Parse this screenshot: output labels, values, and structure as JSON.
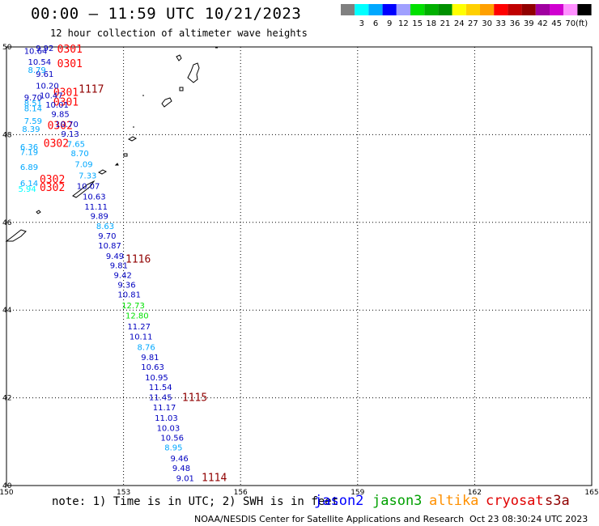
{
  "header": {
    "title": "00:00 – 11:59 UTC 10/21/2023",
    "subtitle": "12 hour collection of altimeter wave heights"
  },
  "legend": {
    "ticks": [
      "3",
      "6",
      "9",
      "12",
      "15",
      "18",
      "21",
      "24",
      "27",
      "30",
      "33",
      "36",
      "39",
      "42",
      "45",
      "70"
    ],
    "unit": "(ft)",
    "colors": [
      "#808080",
      "#00ffff",
      "#00a8ff",
      "#0000ff",
      "#a0a0ff",
      "#00e000",
      "#00b000",
      "#009000",
      "#ffff00",
      "#ffd000",
      "#ffa000",
      "#ff0000",
      "#c00000",
      "#900000",
      "#a000a0",
      "#d000d0",
      "#ff90ff",
      "#000000"
    ]
  },
  "map": {
    "lat_ticks": [
      "50",
      "48",
      "46",
      "44",
      "42",
      "40"
    ],
    "lon_ticks": [
      "150",
      "153",
      "156",
      "159",
      "162",
      "165"
    ],
    "lat_range": [
      40,
      50
    ],
    "lon_range": [
      150,
      165
    ],
    "gridlines": true,
    "track_times": [
      {
        "text": "0301",
        "lon": 151.3,
        "lat": 49.87,
        "color": "#ff0000"
      },
      {
        "text": "0301",
        "lon": 151.3,
        "lat": 49.54,
        "color": "#ff0000"
      },
      {
        "text": "1117",
        "lon": 151.85,
        "lat": 48.96,
        "color": "#900000"
      },
      {
        "text": "0301",
        "lon": 151.2,
        "lat": 48.88,
        "color": "#ff0000"
      },
      {
        "text": "0301",
        "lon": 151.2,
        "lat": 48.66,
        "color": "#ff0000"
      },
      {
        "text": "0302",
        "lon": 151.05,
        "lat": 48.13,
        "color": "#ff0000"
      },
      {
        "text": "0302",
        "lon": 150.95,
        "lat": 47.72,
        "color": "#ff0000"
      },
      {
        "text": "0302",
        "lon": 150.85,
        "lat": 46.9,
        "color": "#ff0000"
      },
      {
        "text": "0302",
        "lon": 150.85,
        "lat": 46.72,
        "color": "#ff0000"
      },
      {
        "text": "1116",
        "lon": 153.05,
        "lat": 45.08,
        "color": "#900000"
      },
      {
        "text": "1115",
        "lon": 154.5,
        "lat": 41.93,
        "color": "#900000"
      },
      {
        "text": "1114",
        "lon": 155.0,
        "lat": 40.1,
        "color": "#900000"
      }
    ],
    "swh_labels": [
      {
        "text": "9.92",
        "lon": 150.75,
        "lat": 49.91,
        "color": "#0000c0"
      },
      {
        "text": "10.64",
        "lon": 150.45,
        "lat": 49.84,
        "color": "#0000c0"
      },
      {
        "text": "10.54",
        "lon": 150.55,
        "lat": 49.59,
        "color": "#0000c0"
      },
      {
        "text": "9.61",
        "lon": 150.75,
        "lat": 49.32,
        "color": "#0000c0"
      },
      {
        "text": "8.79",
        "lon": 150.55,
        "lat": 49.41,
        "color": "#00a8ff"
      },
      {
        "text": "10.20",
        "lon": 150.75,
        "lat": 49.05,
        "color": "#0000c0"
      },
      {
        "text": "10.47",
        "lon": 150.85,
        "lat": 48.83,
        "color": "#0000c0"
      },
      {
        "text": "9.70",
        "lon": 150.45,
        "lat": 48.78,
        "color": "#0000c0"
      },
      {
        "text": "8.51",
        "lon": 150.45,
        "lat": 48.65,
        "color": "#00a8ff"
      },
      {
        "text": "10.01",
        "lon": 151.0,
        "lat": 48.62,
        "color": "#0000c0"
      },
      {
        "text": "8.14",
        "lon": 150.45,
        "lat": 48.53,
        "color": "#00a8ff"
      },
      {
        "text": "9.85",
        "lon": 151.15,
        "lat": 48.4,
        "color": "#0000c0"
      },
      {
        "text": "7.59",
        "lon": 150.45,
        "lat": 48.25,
        "color": "#00a8ff"
      },
      {
        "text": "10.70",
        "lon": 151.25,
        "lat": 48.17,
        "color": "#0000c0"
      },
      {
        "text": "8.39",
        "lon": 150.4,
        "lat": 48.06,
        "color": "#00a8ff"
      },
      {
        "text": "9.13",
        "lon": 151.4,
        "lat": 47.95,
        "color": "#0000c0"
      },
      {
        "text": "7.65",
        "lon": 151.55,
        "lat": 47.72,
        "color": "#00a8ff"
      },
      {
        "text": "6.36",
        "lon": 150.35,
        "lat": 47.66,
        "color": "#00a8ff"
      },
      {
        "text": "8.70",
        "lon": 151.65,
        "lat": 47.51,
        "color": "#00a8ff"
      },
      {
        "text": "7.19",
        "lon": 150.35,
        "lat": 47.54,
        "color": "#00a8ff"
      },
      {
        "text": "7.09",
        "lon": 151.75,
        "lat": 47.26,
        "color": "#00a8ff"
      },
      {
        "text": "6.89",
        "lon": 150.35,
        "lat": 47.2,
        "color": "#00a8ff"
      },
      {
        "text": "7.33",
        "lon": 151.85,
        "lat": 47.0,
        "color": "#00a8ff"
      },
      {
        "text": "10.07",
        "lon": 151.8,
        "lat": 46.76,
        "color": "#0000c0"
      },
      {
        "text": "6.14",
        "lon": 150.35,
        "lat": 46.83,
        "color": "#00a8ff"
      },
      {
        "text": "5.94",
        "lon": 150.3,
        "lat": 46.7,
        "color": "#00ffff"
      },
      {
        "text": "10.63",
        "lon": 151.95,
        "lat": 46.52,
        "color": "#0000c0"
      },
      {
        "text": "11.11",
        "lon": 152.0,
        "lat": 46.29,
        "color": "#0000c0"
      },
      {
        "text": "9.89",
        "lon": 152.15,
        "lat": 46.08,
        "color": "#0000c0"
      },
      {
        "text": "8.63",
        "lon": 152.3,
        "lat": 45.85,
        "color": "#00a8ff"
      },
      {
        "text": "9.70",
        "lon": 152.35,
        "lat": 45.63,
        "color": "#0000c0"
      },
      {
        "text": "10.87",
        "lon": 152.35,
        "lat": 45.41,
        "color": "#0000c0"
      },
      {
        "text": "9.49",
        "lon": 152.55,
        "lat": 45.17,
        "color": "#0000c0"
      },
      {
        "text": "9.81",
        "lon": 152.65,
        "lat": 44.95,
        "color": "#0000c0"
      },
      {
        "text": "9.42",
        "lon": 152.75,
        "lat": 44.73,
        "color": "#0000c0"
      },
      {
        "text": "9.36",
        "lon": 152.85,
        "lat": 44.51,
        "color": "#0000c0"
      },
      {
        "text": "10.81",
        "lon": 152.85,
        "lat": 44.29,
        "color": "#0000c0"
      },
      {
        "text": "12.73",
        "lon": 152.95,
        "lat": 44.04,
        "color": "#00e000"
      },
      {
        "text": "12.80",
        "lon": 153.05,
        "lat": 43.81,
        "color": "#00e000"
      },
      {
        "text": "11.27",
        "lon": 153.1,
        "lat": 43.56,
        "color": "#0000c0"
      },
      {
        "text": "10.11",
        "lon": 153.15,
        "lat": 43.33,
        "color": "#0000c0"
      },
      {
        "text": "8.76",
        "lon": 153.35,
        "lat": 43.09,
        "color": "#00a8ff"
      },
      {
        "text": "9.81",
        "lon": 153.45,
        "lat": 42.86,
        "color": "#0000c0"
      },
      {
        "text": "10.63",
        "lon": 153.45,
        "lat": 42.64,
        "color": "#0000c0"
      },
      {
        "text": "10.95",
        "lon": 153.55,
        "lat": 42.4,
        "color": "#0000c0"
      },
      {
        "text": "11.54",
        "lon": 153.65,
        "lat": 42.18,
        "color": "#0000c0"
      },
      {
        "text": "11.45",
        "lon": 153.65,
        "lat": 41.95,
        "color": "#0000c0"
      },
      {
        "text": "11.17",
        "lon": 153.75,
        "lat": 41.72,
        "color": "#0000c0"
      },
      {
        "text": "11.03",
        "lon": 153.8,
        "lat": 41.48,
        "color": "#0000c0"
      },
      {
        "text": "10.03",
        "lon": 153.85,
        "lat": 41.25,
        "color": "#0000c0"
      },
      {
        "text": "10.56",
        "lon": 153.95,
        "lat": 41.02,
        "color": "#0000c0"
      },
      {
        "text": "8.95",
        "lon": 154.05,
        "lat": 40.8,
        "color": "#00a8ff"
      },
      {
        "text": "9.46",
        "lon": 154.2,
        "lat": 40.55,
        "color": "#0000c0"
      },
      {
        "text": "9.48",
        "lon": 154.25,
        "lat": 40.33,
        "color": "#0000c0"
      },
      {
        "text": "9.01",
        "lon": 154.35,
        "lat": 40.1,
        "color": "#0000c0"
      }
    ]
  },
  "footer": {
    "note": "note: 1) Time is in UTC; 2) SWH is in feet",
    "satellites": [
      {
        "name": "jason2",
        "color": "#0000ff"
      },
      {
        "name": "jason3",
        "color": "#00a000"
      },
      {
        "name": "altika",
        "color": "#ff9000"
      },
      {
        "name": "cryosat",
        "color": "#e00000"
      },
      {
        "name": "s3a",
        "color": "#900000"
      }
    ],
    "credit": "NOAA/NESDIS Center for Satellite Applications and Research",
    "timestamp": "Oct 23 08:30:24 UTC 2023"
  }
}
